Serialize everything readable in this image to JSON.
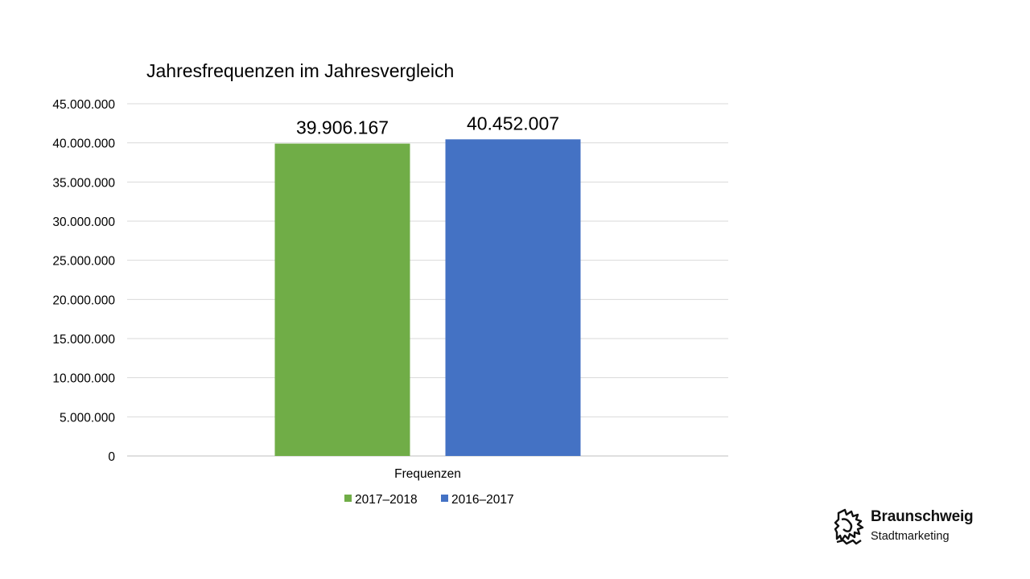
{
  "chart_data": {
    "type": "bar",
    "title": "Jahresfrequenzen im Jahresvergleich",
    "categories": [
      "Frequenzen"
    ],
    "series": [
      {
        "name": "2017–2018",
        "values": [
          39906167
        ],
        "label": "39.906.167",
        "color": "#70AD47"
      },
      {
        "name": "2016–2017",
        "values": [
          40452007
        ],
        "label": "40.452.007",
        "color": "#4472C4"
      }
    ],
    "ylim": [
      0,
      45000000
    ],
    "yticks": [
      0,
      5000000,
      10000000,
      15000000,
      20000000,
      25000000,
      30000000,
      35000000,
      40000000,
      45000000
    ],
    "ytick_labels": [
      "0",
      "5.000.000",
      "10.000.000",
      "15.000.000",
      "20.000.000",
      "25.000.000",
      "30.000.000",
      "35.000.000",
      "40.000.000",
      "45.000.000"
    ],
    "grid": true,
    "legend": "bottom",
    "xlabel": "",
    "ylabel": ""
  },
  "logo": {
    "title": "Braunschweig",
    "subtitle": "Stadtmarketing",
    "icon": "lion-icon"
  }
}
